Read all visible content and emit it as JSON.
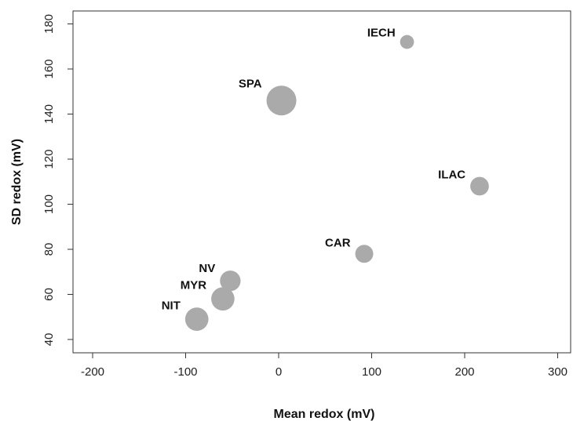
{
  "chart_data": {
    "type": "scatter",
    "title": "",
    "xlabel": "Mean redox (mV)",
    "ylabel": "SD redox (mV)",
    "xlim": [
      -230,
      320
    ],
    "ylim": [
      35,
      185
    ],
    "xticks": [
      -200,
      -100,
      0,
      100,
      200,
      300
    ],
    "yticks": [
      40,
      60,
      80,
      100,
      120,
      140,
      160,
      180
    ],
    "grid": false,
    "point_color": "#aaaaaa",
    "points": [
      {
        "label": "IECH",
        "x": 138,
        "y": 172,
        "size": 0.22
      },
      {
        "label": "SPA",
        "x": 3,
        "y": 146,
        "size": 1.0
      },
      {
        "label": "ILAC",
        "x": 216,
        "y": 108,
        "size": 0.45
      },
      {
        "label": "CAR",
        "x": 92,
        "y": 78,
        "size": 0.42
      },
      {
        "label": "NV",
        "x": -52,
        "y": 66,
        "size": 0.55
      },
      {
        "label": "MYR",
        "x": -60,
        "y": 58,
        "size": 0.68
      },
      {
        "label": "NIT",
        "x": -88,
        "y": 49,
        "size": 0.68
      }
    ]
  }
}
